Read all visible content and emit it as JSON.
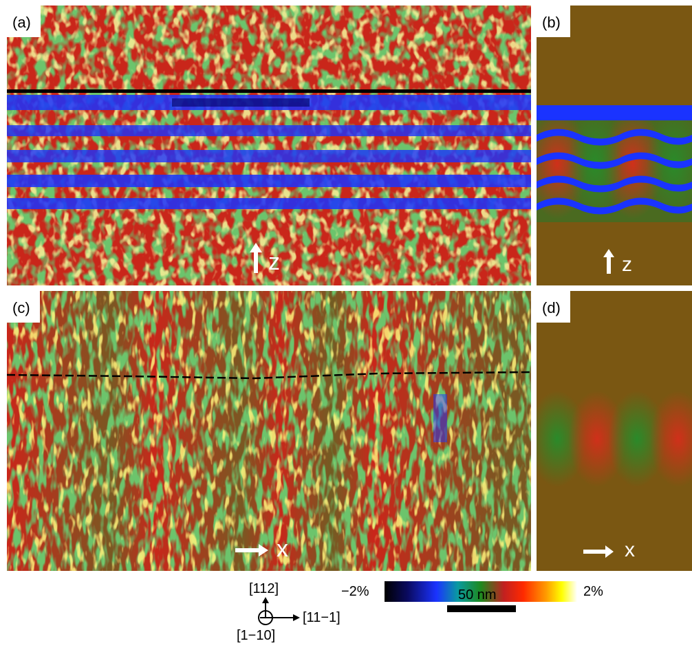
{
  "panels": {
    "a": {
      "label": "(a)",
      "axis": "z"
    },
    "b": {
      "label": "(b)",
      "axis": "z"
    },
    "c": {
      "label": "(c)",
      "axis": "x"
    },
    "d": {
      "label": "(d)",
      "axis": "x"
    }
  },
  "colorbar": {
    "min_label": "−2%",
    "max_label": "2%"
  },
  "scale_bar": {
    "label": "50 nm"
  },
  "crystal_axes": {
    "up": "[112]",
    "right": "[11−1]",
    "out": "[1−10]"
  },
  "colors": {
    "background_brown": "#7a5712",
    "layer_blue": "#1a33ff",
    "strain_red": "#d42a10",
    "strain_green": "#2a8a2a"
  }
}
